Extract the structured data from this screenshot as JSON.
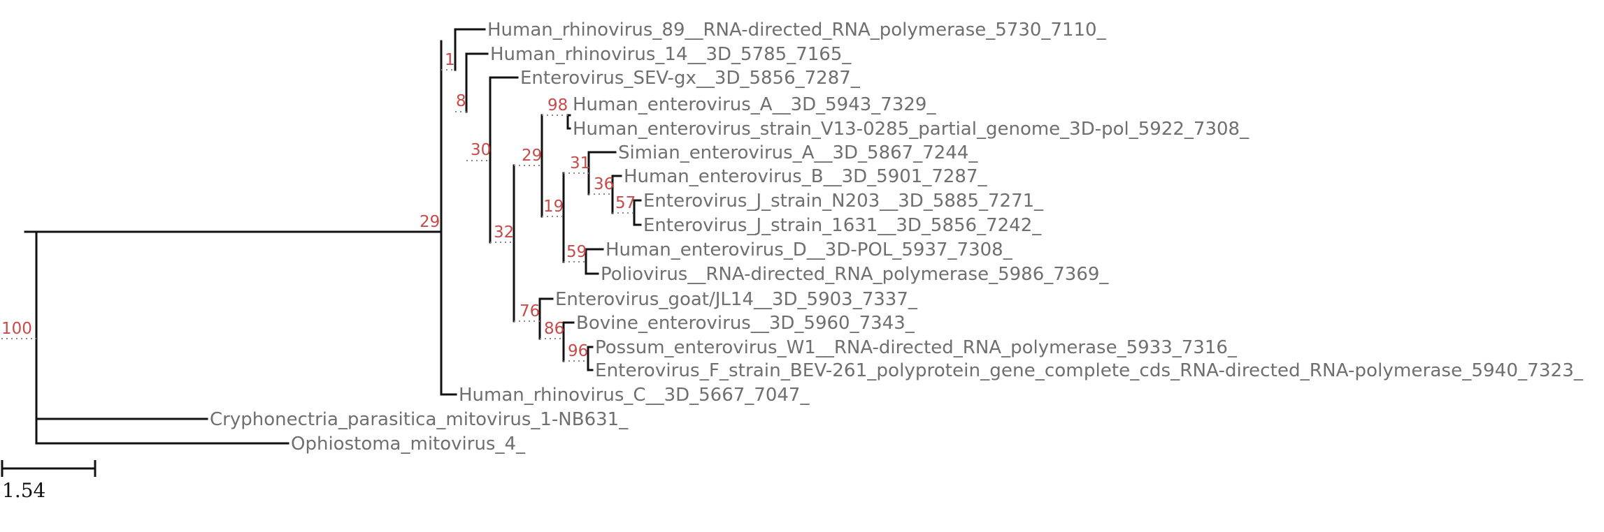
{
  "tree": {
    "leaves": [
      "Human_rhinovirus_89__RNA-directed_RNA_polymerase_5730_7110_",
      "Human_rhinovirus_14__3D_5785_7165_",
      "Enterovirus_SEV-gx__3D_5856_7287_",
      "Human_enterovirus_A__3D_5943_7329_",
      "Human_enterovirus_strain_V13-0285_partial_genome_3D-pol_5922_7308_",
      "Simian_enterovirus_A__3D_5867_7244_",
      "Human_enterovirus_B__3D_5901_7287_",
      "Enterovirus_J_strain_N203__3D_5885_7271_",
      "Enterovirus_J_strain_1631__3D_5856_7242_",
      "Human_enterovirus_D__3D-POL_5937_7308_",
      "Poliovirus__RNA-directed_RNA_polymerase_5986_7369_",
      "Enterovirus_goat/JL14__3D_5903_7337_",
      "Bovine_enterovirus__3D_5960_7343_",
      "Possum_enterovirus_W1__RNA-directed_RNA_polymerase_5933_7316_",
      "Enterovirus_F_strain_BEV-261_polyprotein_gene_complete_cds_RNA-directed_RNA-polymerase_5940_7323_",
      "Human_rhinovirus_C__3D_5667_7047_",
      "Cryphonectria_parasitica_mitovirus_1-NB631_",
      "Ophiostoma_mitovirus_4_"
    ],
    "support_values": [
      "100",
      "29",
      "1",
      "8",
      "30",
      "32",
      "29",
      "98",
      "19",
      "31",
      "36",
      "57",
      "59",
      "76",
      "86",
      "96"
    ],
    "scale_bar": "1.54"
  }
}
